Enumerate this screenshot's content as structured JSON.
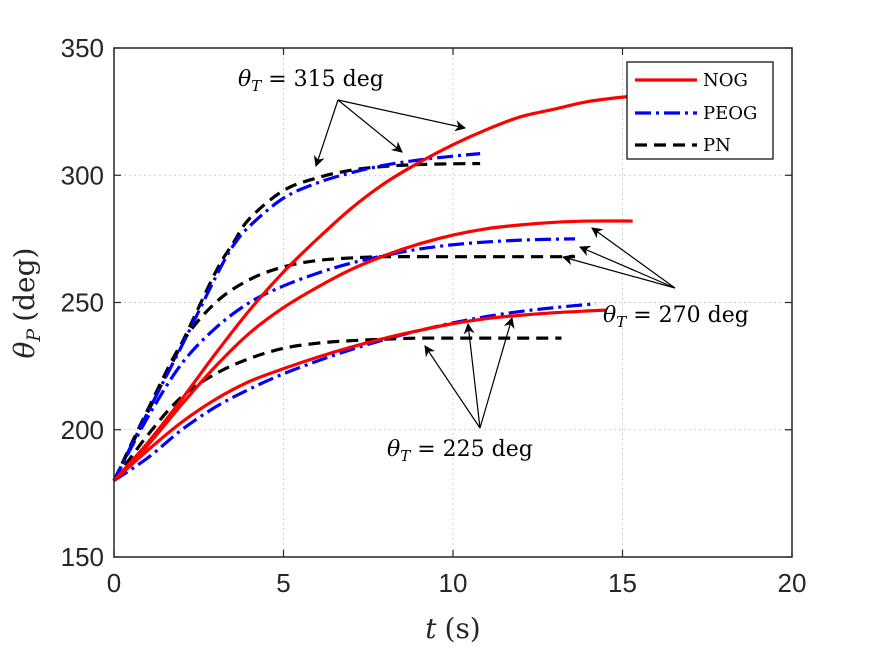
{
  "chart_data": {
    "type": "line",
    "title": "",
    "xlabel": {
      "var": "t",
      "unit": "(s)"
    },
    "ylabel": {
      "var": "θ",
      "sub": "P",
      "unit": "(deg)"
    },
    "xlim": [
      0,
      20
    ],
    "ylim": [
      150,
      350
    ],
    "xticks": [
      0,
      5,
      10,
      15,
      20
    ],
    "yticks": [
      150,
      200,
      250,
      300,
      350
    ],
    "grid": true,
    "legend_position": "top-right",
    "legend": [
      {
        "name": "NOG",
        "color": "#ff0000",
        "dash": "solid"
      },
      {
        "name": "PEOG",
        "color": "#0000ff",
        "dash": "dashdot"
      },
      {
        "name": "PN",
        "color": "#000000",
        "dash": "dashed"
      }
    ],
    "groups": [
      {
        "label": {
          "var": "θ",
          "sub": "T",
          "rest": " = 315 deg"
        },
        "series": [
          {
            "name": "NOG",
            "x": [
              0,
              1,
              2,
              3,
              4,
              5,
              6,
              7,
              8,
              9,
              10,
              11,
              12,
              13,
              14,
              15.2
            ],
            "y": [
              180,
              195,
              212,
              230,
              247,
              262,
              275,
              287,
              297,
              305,
              312,
              318,
              323,
              326,
              329,
              331
            ]
          },
          {
            "name": "PEOG",
            "x": [
              0,
              1,
              2,
              3,
              3.5,
              4,
              5,
              6,
              7,
              8,
              9,
              10,
              10.8
            ],
            "y": [
              180,
              207,
              233,
              260,
              272,
              280,
              291,
              297,
              301,
              304,
              306,
              307.5,
              308.5
            ]
          },
          {
            "name": "PN",
            "x": [
              0,
              1,
              2,
              3,
              3.5,
              4,
              5,
              6,
              7,
              8,
              9,
              10,
              10.8
            ],
            "y": [
              180,
              207,
              234,
              262,
              273,
              283,
              294,
              299,
              302,
              303.5,
              304.2,
              304.5,
              304.6
            ]
          }
        ]
      },
      {
        "label": {
          "var": "θ",
          "sub": "T",
          "rest": " = 270 deg"
        },
        "series": [
          {
            "name": "NOG",
            "x": [
              0,
              1,
              2,
              3,
              4,
              5,
              6,
              7,
              8,
              9,
              10,
              11,
              12,
              13,
              14,
              15.3
            ],
            "y": [
              180,
              194,
              210,
              225,
              238,
              248,
              256,
              263,
              268.5,
              273,
              276.5,
              279,
              280.5,
              281.5,
              282,
              282
            ]
          },
          {
            "name": "PEOG",
            "x": [
              0,
              1,
              2,
              3,
              4,
              5,
              6,
              7,
              8,
              9,
              10,
              11,
              12,
              13,
              13.6
            ],
            "y": [
              180,
              205,
              226,
              240,
              250,
              256.5,
              261.5,
              265.5,
              268.5,
              271,
              272.7,
              273.8,
              274.5,
              274.9,
              275
            ]
          },
          {
            "name": "PN",
            "x": [
              0,
              1,
              2,
              3,
              4,
              5,
              6,
              7,
              8,
              10,
              12,
              13.6
            ],
            "y": [
              180,
              208,
              234,
              250,
              259,
              264,
              266.5,
              267.5,
              268,
              268,
              268,
              268
            ]
          }
        ]
      },
      {
        "label": {
          "var": "θ",
          "sub": "T",
          "rest": " = 225 deg"
        },
        "series": [
          {
            "name": "NOG",
            "x": [
              0,
              1,
              2,
              3,
              4,
              5,
              6,
              7,
              8,
              9,
              10,
              11,
              12,
              13,
              14,
              14.5
            ],
            "y": [
              180,
              192,
              203,
              212,
              219,
              224,
              228.5,
              232.5,
              236,
              239,
              241.7,
              243.7,
              245,
              246,
              246.7,
              247
            ]
          },
          {
            "name": "PEOG",
            "x": [
              0,
              1,
              2,
              3,
              4,
              5,
              6,
              7,
              8,
              9,
              10,
              11,
              12,
              13,
              14.2
            ],
            "y": [
              180,
              189,
              200,
              209,
              216,
              222,
              227,
              231.5,
              235.5,
              239,
              242,
              244.5,
              246.5,
              248,
              249.5
            ]
          },
          {
            "name": "PN",
            "x": [
              0,
              1,
              2,
              3,
              4,
              5,
              6,
              7,
              8,
              9,
              10,
              11,
              12,
              13.2
            ],
            "y": [
              180,
              198,
              213,
              222,
              228,
              232,
              234,
              235,
              235.6,
              236,
              236,
              236,
              236,
              236
            ]
          }
        ]
      }
    ]
  }
}
